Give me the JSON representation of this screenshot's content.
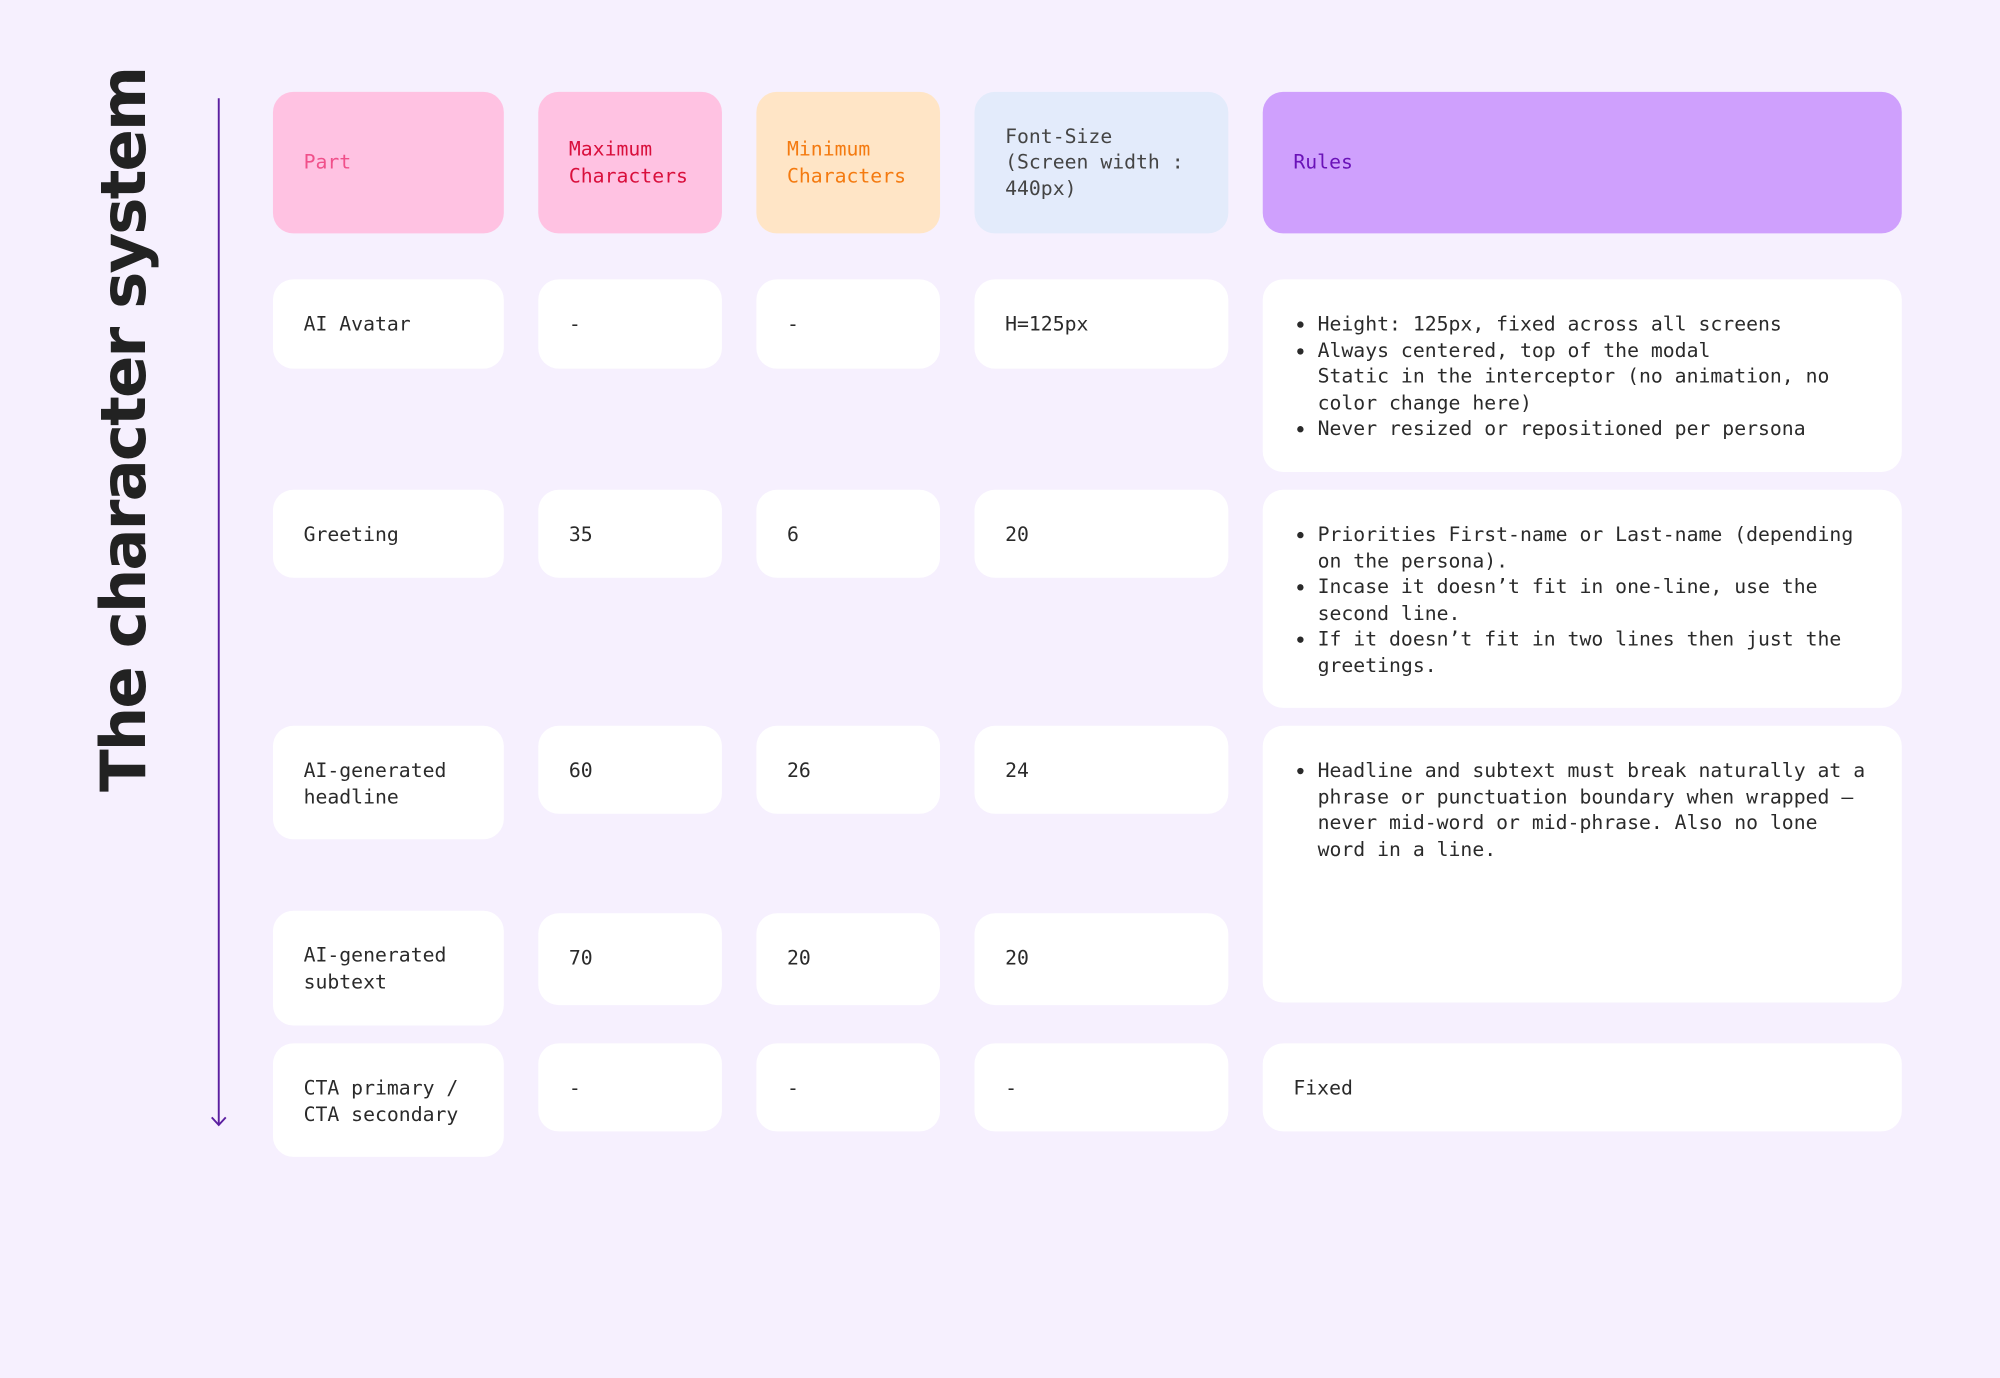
{
  "title": "The character system",
  "columns": [
    "Part",
    "Maximum Characters",
    "Minimum Characters",
    "Font-Size (Screen width : 440px)",
    "Rules"
  ],
  "rows": [
    {
      "part": "AI Avatar",
      "max": "-",
      "min": "-",
      "font_size": "H=125px",
      "rules": [
        "Height: 125px, fixed across all screens",
        "Always centered, top of the modal\nStatic in the interceptor (no animation, no color change here)",
        "Never resized or repositioned per persona"
      ]
    },
    {
      "part": "Greeting",
      "max": "35",
      "min": "6",
      "font_size": "20",
      "rules": [
        "Priorities First-name or Last-name (depending on the persona).",
        "Incase it doesn’t fit in one-line, use the second line.",
        "If it doesn’t fit in two lines then just the greetings."
      ]
    },
    {
      "part": "AI-generated headline",
      "max": "60",
      "min": "26",
      "font_size": "24",
      "rules": [
        "Headline and subtext must break naturally at a phrase or punctuation boundary when wrapped — never mid-word or mid-phrase. Also no lone word in a line."
      ]
    },
    {
      "part": "AI-generated subtext",
      "max": "70",
      "min": "20",
      "font_size": "20"
    },
    {
      "part": "CTA primary / CTA secondary",
      "max": "-",
      "min": "-",
      "font_size": "-",
      "rules": "Fixed"
    }
  ]
}
